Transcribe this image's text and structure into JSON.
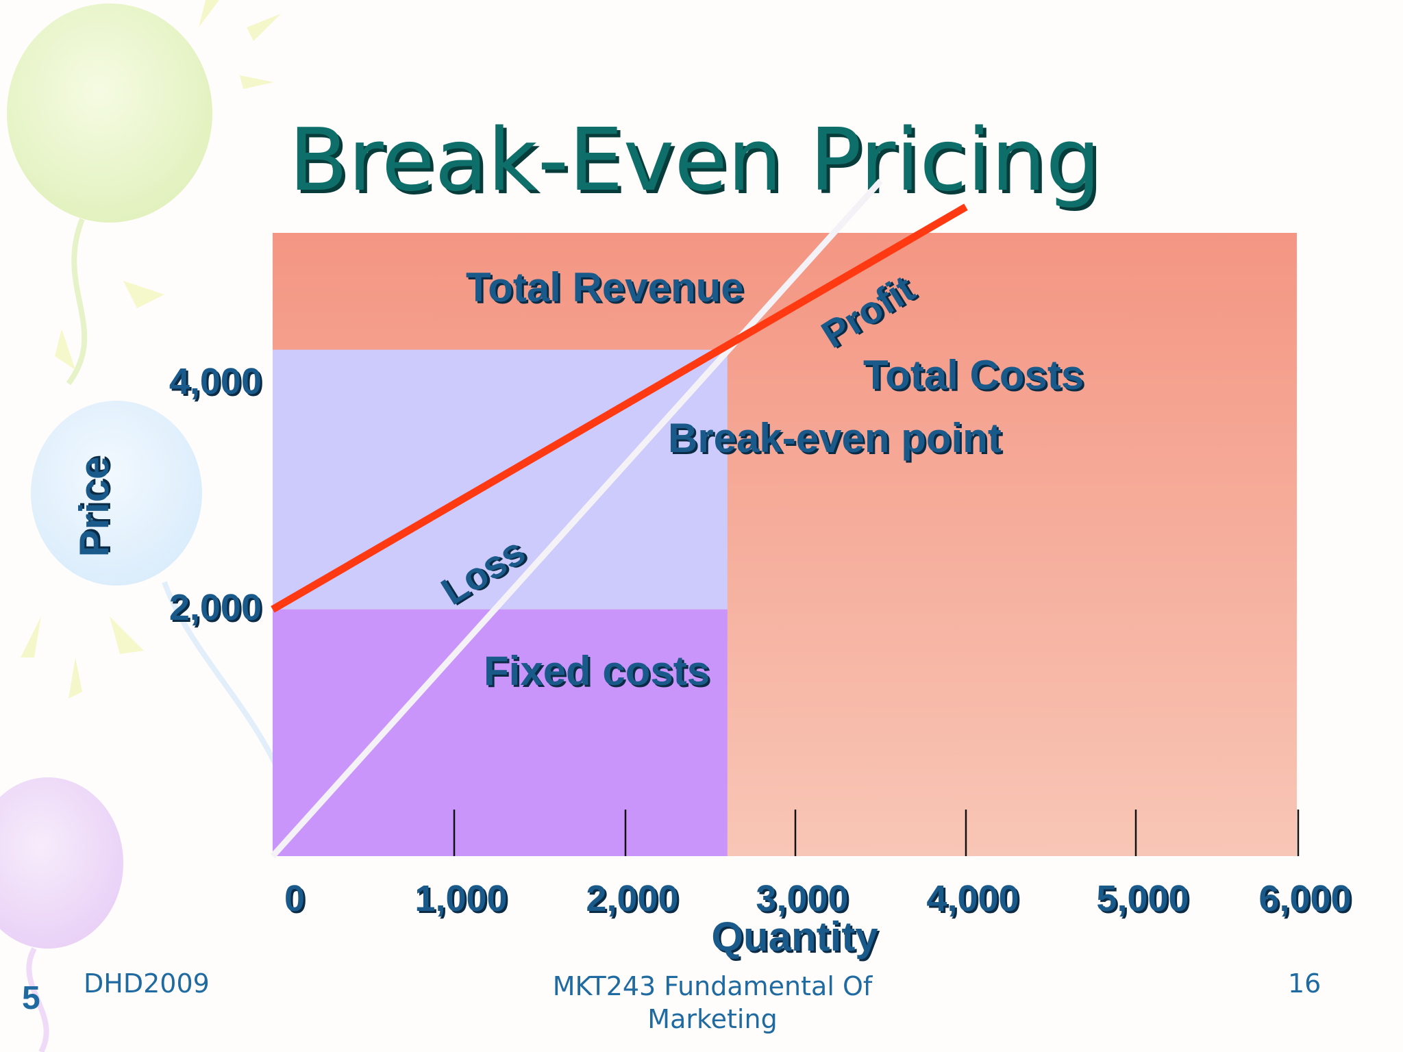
{
  "slide": {
    "title": "Break-Even Pricing",
    "footer_left": "DHD2009",
    "footer_center": "MKT243   Fundamental Of Marketing",
    "footer_right": "16",
    "slide_index": "5"
  },
  "chart_data": {
    "type": "line",
    "title": "Break-Even Pricing",
    "xlabel": "Quantity",
    "ylabel": "Price",
    "xlim": [
      0,
      6000
    ],
    "ylim": [
      0,
      4800
    ],
    "x_ticks": [
      0,
      1000,
      2000,
      3000,
      4000,
      5000,
      6000
    ],
    "x_tick_labels": [
      "0",
      "1,000",
      "2,000",
      "3,000",
      "4,000",
      "5,000",
      "6,000"
    ],
    "y_ticks": [
      2000,
      4000
    ],
    "y_tick_labels": [
      "2,000",
      "4,000"
    ],
    "series": [
      {
        "name": "Total Revenue",
        "x": [
          0,
          3500
        ],
        "y": [
          0,
          5200
        ],
        "color": "#f4f2f6"
      },
      {
        "name": "Total Costs",
        "x": [
          0,
          4000
        ],
        "y": [
          1900,
          5000
        ],
        "color": "#ff3a12"
      }
    ],
    "fixed_costs": 1900,
    "break_even": {
      "x": 2600,
      "y": 3900
    },
    "regions": [
      {
        "name": "Fixed costs",
        "x": [
          0,
          2600
        ],
        "y": [
          0,
          1900
        ],
        "color": "#c995fb"
      },
      {
        "name": "Loss",
        "x": [
          0,
          2600
        ],
        "y": [
          1900,
          3900
        ],
        "color": "#cccbfc"
      },
      {
        "name": "Profit",
        "x": [
          0,
          6000
        ],
        "y": [
          0,
          5500
        ],
        "color": "#f49a86"
      }
    ],
    "annotations": [
      "Total Revenue",
      "Total Costs",
      "Profit",
      "Loss",
      "Break-even point",
      "Fixed costs"
    ]
  }
}
